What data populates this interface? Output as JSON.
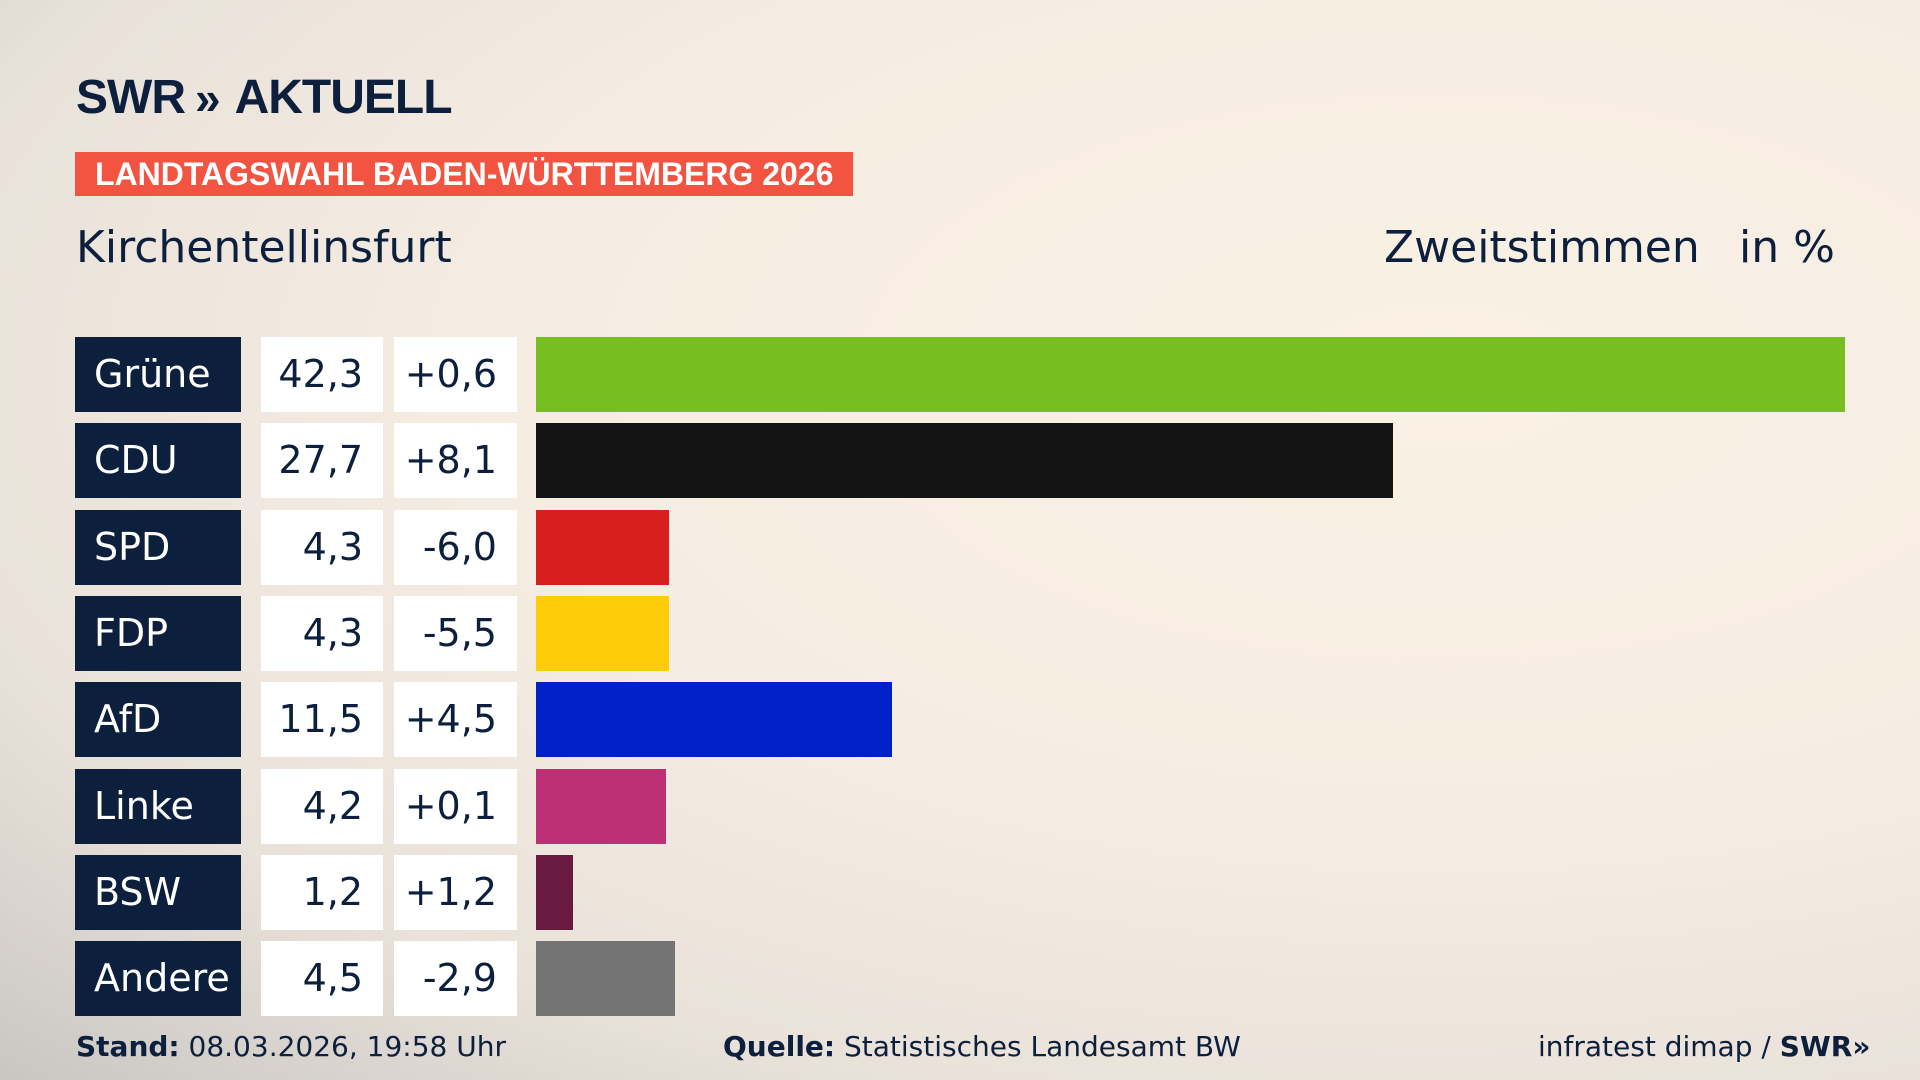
{
  "header": {
    "logo": "SWR AKTUELL",
    "logo_swr": "SWR",
    "logo_chevrons": "»",
    "logo_aktuell": "AKTUELL",
    "banner": "LANDTAGSWAHL BADEN-WÜRTTEMBERG 2026",
    "place": "Kirchentellinsfurt",
    "vote_type": "Zweitstimmen",
    "unit": "in %"
  },
  "chart_data": {
    "type": "bar",
    "orientation": "horizontal",
    "categories": [
      "Grüne",
      "CDU",
      "SPD",
      "FDP",
      "AfD",
      "Linke",
      "BSW",
      "Andere"
    ],
    "values": [
      42.3,
      27.7,
      4.3,
      4.3,
      11.5,
      4.2,
      1.2,
      4.5
    ],
    "value_labels": [
      "42,3",
      "27,7",
      "4,3",
      "4,3",
      "11,5",
      "4,2",
      "1,2",
      "4,5"
    ],
    "change_labels": [
      "+0,6",
      "+8,1",
      "-6,0",
      "-5,5",
      "+4,5",
      "+0,1",
      "+1,2",
      "-2,9"
    ],
    "changes": [
      0.6,
      8.1,
      -6.0,
      -5.5,
      4.5,
      0.1,
      1.2,
      -2.9
    ],
    "colors": [
      "#78be20",
      "#141414",
      "#d7201e",
      "#ffcc0a",
      "#0021c8",
      "#bd3075",
      "#681a40",
      "#747474"
    ],
    "grid": false
  },
  "footer": {
    "stand_label": "Stand:",
    "stand_value": "08.03.2026, 19:58 Uhr",
    "source_label": "Quelle:",
    "source_value": "Statistisches Landesamt BW",
    "credit": "infratest dimap / ",
    "credit_logo": "SWR»"
  }
}
